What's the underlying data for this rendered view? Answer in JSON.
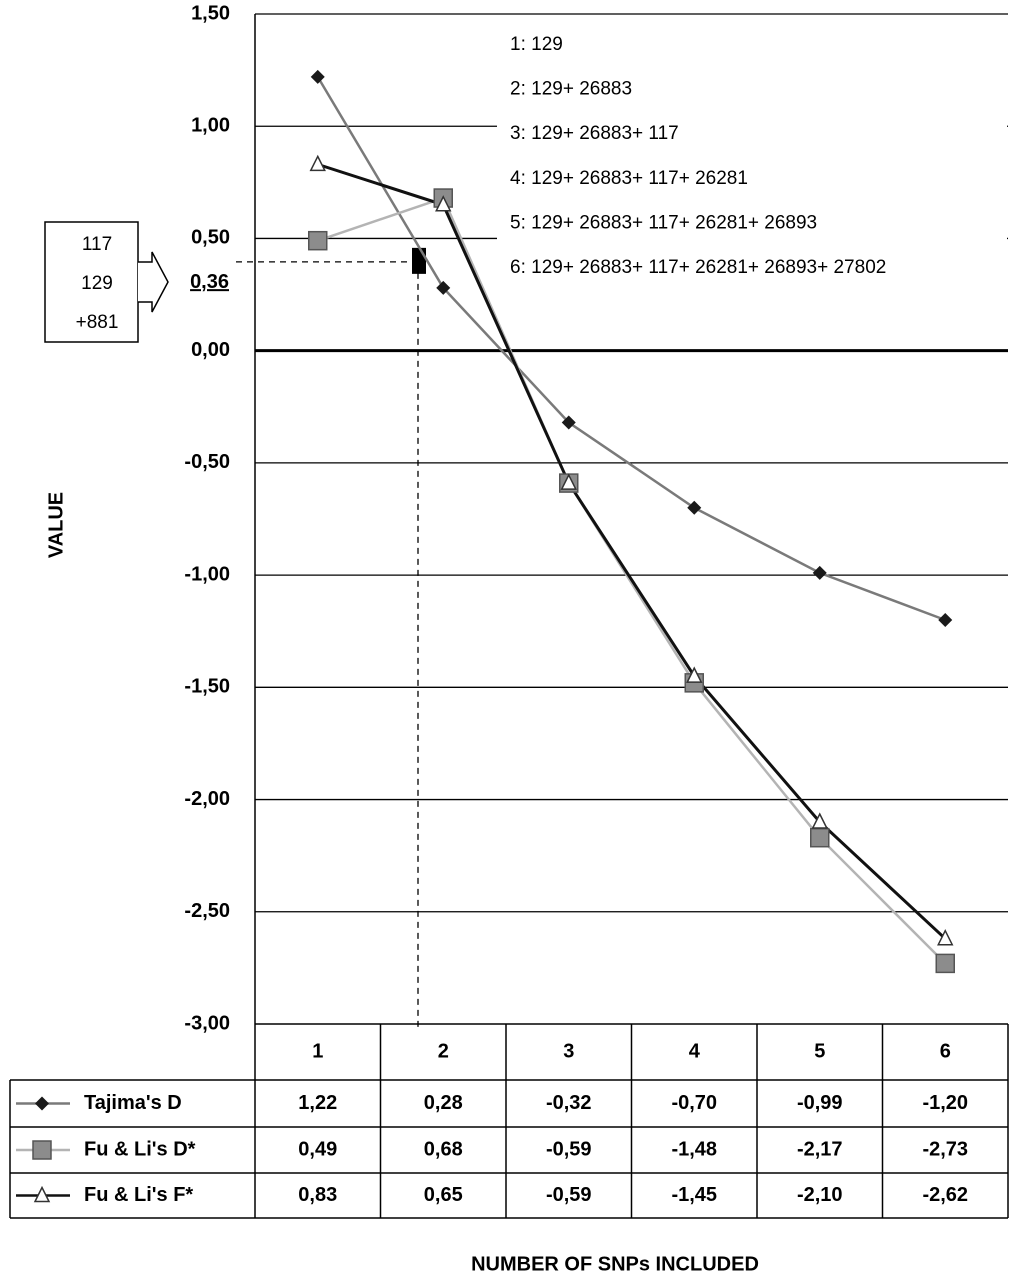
{
  "chart_data": {
    "type": "line",
    "y_label": "VALUE",
    "x_label": "NUMBER OF SNPs INCLUDED",
    "categories": [
      "1",
      "2",
      "3",
      "4",
      "5",
      "6"
    ],
    "series": [
      {
        "name": "Tajima's D",
        "color": "#7a7a7a",
        "marker": "diamond",
        "marker_color": "#1a1a1a",
        "values": [
          1.22,
          0.28,
          -0.32,
          -0.7,
          -0.99,
          -1.2
        ],
        "value_labels": [
          "1,22",
          "0,28",
          "-0,32",
          "-0,70",
          "-0,99",
          "-1,20"
        ]
      },
      {
        "name": "Fu & Li's D*",
        "color": "#b4b4b4",
        "marker": "square",
        "marker_color": "#8c8c8c",
        "values": [
          0.49,
          0.68,
          -0.59,
          -1.48,
          -2.17,
          -2.73
        ],
        "value_labels": [
          "0,49",
          "0,68",
          "-0,59",
          "-1,48",
          "-2,17",
          "-2,73"
        ]
      },
      {
        "name": "Fu & Li's F*",
        "color": "#111111",
        "marker": "triangle",
        "marker_color": "#ffffff",
        "values": [
          0.83,
          0.65,
          -0.59,
          -1.45,
          -2.1,
          -2.62
        ],
        "value_labels": [
          "0,83",
          "0,65",
          "-0,59",
          "-1,45",
          "-2,10",
          "-2,62"
        ]
      }
    ],
    "ylim": [
      -3,
      1.5
    ],
    "yticks": [
      {
        "value": 1.5,
        "label": "1,50"
      },
      {
        "value": 1,
        "label": "1,00"
      },
      {
        "value": 0.5,
        "label": "0,50"
      },
      {
        "value": 0,
        "label": "0,00"
      },
      {
        "value": -0.5,
        "label": "-0,50"
      },
      {
        "value": -1,
        "label": "-1,00"
      },
      {
        "value": -1.5,
        "label": "-1,50"
      },
      {
        "value": -2,
        "label": "-2,00"
      },
      {
        "value": -2.5,
        "label": "-2,50"
      },
      {
        "value": -3,
        "label": "-3,00"
      }
    ],
    "grid": true,
    "snp_list": [
      "1: 129",
      "2: 129+ 26883",
      "3: 129+ 26883+ 117",
      "4: 129+ 26883+ 117+ 26281",
      "5: 129+ 26883+ 117+ 26281+ 26893",
      "6: 129+ 26883+ 117+ 26281+ 26893+ 27802"
    ],
    "annotation": {
      "value": 0.36,
      "label": "0,36",
      "box": [
        "117",
        "129",
        "+881"
      ]
    }
  }
}
